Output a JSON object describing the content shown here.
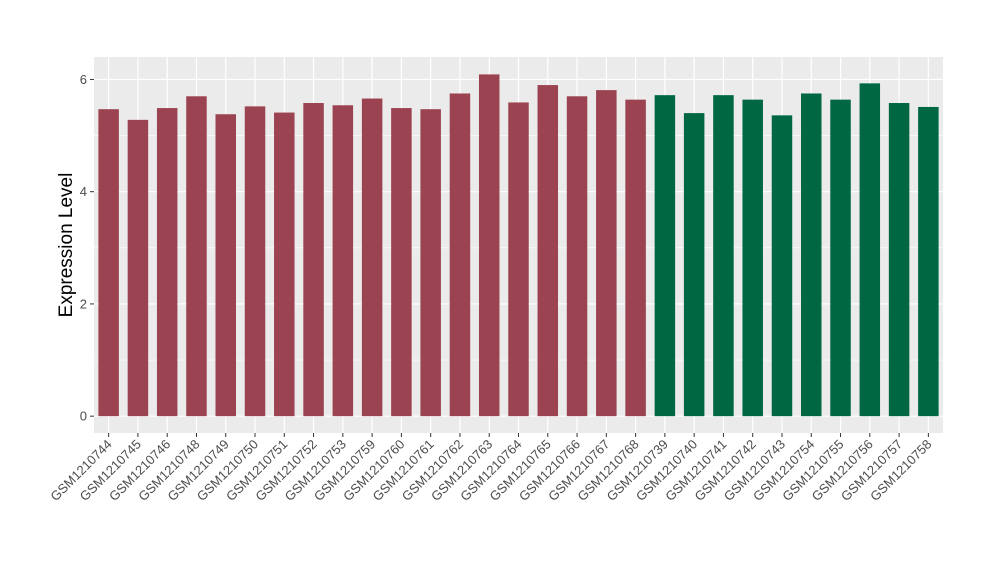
{
  "chart_data": {
    "type": "bar",
    "ylabel": "Expression Level",
    "xlabel": "",
    "ylim": [
      -0.3,
      6.4
    ],
    "yticks": [
      0,
      2,
      4,
      6
    ],
    "grid": true,
    "legend": "none",
    "colors": {
      "group_a": "#9b4351",
      "group_b": "#006743",
      "panel": "#ebebeb",
      "grid": "#ffffff"
    },
    "categories": [
      "GSM1210744",
      "GSM1210745",
      "GSM1210746",
      "GSM1210748",
      "GSM1210749",
      "GSM1210750",
      "GSM1210751",
      "GSM1210752",
      "GSM1210753",
      "GSM1210759",
      "GSM1210760",
      "GSM1210761",
      "GSM1210762",
      "GSM1210763",
      "GSM1210764",
      "GSM1210765",
      "GSM1210766",
      "GSM1210767",
      "GSM1210768",
      "GSM1210739",
      "GSM1210740",
      "GSM1210741",
      "GSM1210742",
      "GSM1210743",
      "GSM1210754",
      "GSM1210755",
      "GSM1210756",
      "GSM1210757",
      "GSM1210758"
    ],
    "values": [
      5.47,
      5.28,
      5.49,
      5.7,
      5.38,
      5.52,
      5.41,
      5.58,
      5.54,
      5.66,
      5.49,
      5.47,
      5.75,
      6.09,
      5.59,
      5.9,
      5.7,
      5.81,
      5.64,
      5.72,
      5.4,
      5.72,
      5.64,
      5.36,
      5.75,
      5.64,
      5.93,
      5.58,
      5.51
    ],
    "groups": [
      "a",
      "a",
      "a",
      "a",
      "a",
      "a",
      "a",
      "a",
      "a",
      "a",
      "a",
      "a",
      "a",
      "a",
      "a",
      "a",
      "a",
      "a",
      "a",
      "b",
      "b",
      "b",
      "b",
      "b",
      "b",
      "b",
      "b",
      "b",
      "b"
    ]
  }
}
